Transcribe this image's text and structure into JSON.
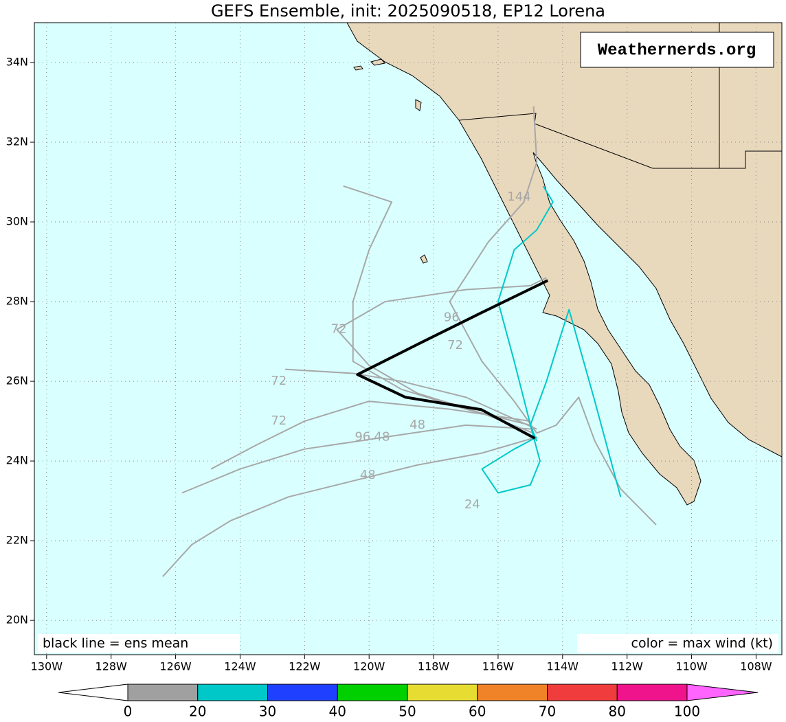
{
  "chart_data": {
    "type": "track_map",
    "title": "GEFS Ensemble, init: 2025090518, EP12 Lorena",
    "watermark": "Weathernerds.org",
    "legend_note": "black line = ens mean",
    "color_note": "color = max wind (kt)",
    "xlim": [
      -130.38,
      -107.2
    ],
    "ylim": [
      19.14,
      35.0
    ],
    "grid": true,
    "xticks": [
      {
        "value": -130,
        "label": "130W"
      },
      {
        "value": -128,
        "label": "128W"
      },
      {
        "value": -126,
        "label": "126W"
      },
      {
        "value": -124,
        "label": "124W"
      },
      {
        "value": -122,
        "label": "122W"
      },
      {
        "value": -120,
        "label": "120W"
      },
      {
        "value": -118,
        "label": "118W"
      },
      {
        "value": -116,
        "label": "116W"
      },
      {
        "value": -114,
        "label": "114W"
      },
      {
        "value": -112,
        "label": "112W"
      },
      {
        "value": -110,
        "label": "110W"
      },
      {
        "value": -108,
        "label": "108W"
      }
    ],
    "yticks": [
      {
        "value": 20,
        "label": "20N"
      },
      {
        "value": 22,
        "label": "22N"
      },
      {
        "value": 24,
        "label": "24N"
      },
      {
        "value": 26,
        "label": "26N"
      },
      {
        "value": 28,
        "label": "28N"
      },
      {
        "value": 30,
        "label": "30N"
      },
      {
        "value": 32,
        "label": "32N"
      },
      {
        "value": 34,
        "label": "34N"
      }
    ],
    "series": [
      {
        "color": "#a8a8a8",
        "x": [
          -114.8,
          -116.5,
          -118.5,
          -120.5,
          -122.5,
          -124.3,
          -125.5,
          -126.4
        ],
        "y": [
          24.6,
          24.2,
          23.9,
          23.5,
          23.1,
          22.5,
          21.9,
          21.1
        ]
      },
      {
        "color": "#a8a8a8",
        "x": [
          -114.9,
          -117,
          -119.5,
          -122,
          -124,
          -125.8
        ],
        "y": [
          24.8,
          24.9,
          24.6,
          24.3,
          23.8,
          23.2
        ]
      },
      {
        "color": "#a8a8a8",
        "x": [
          -114.8,
          -115.5,
          -116.5,
          -117.5,
          -116.3,
          -115.2,
          -114.8,
          -114.9
        ],
        "y": [
          24.7,
          25.5,
          26.5,
          28,
          29.5,
          30.5,
          31.5,
          32.9
        ]
      },
      {
        "color": "#a8a8a8",
        "x": [
          -115,
          -117,
          -119,
          -120.5,
          -120.5,
          -120,
          -119.3,
          -120.8
        ],
        "y": [
          24.9,
          25.3,
          25.8,
          26.5,
          28,
          29.3,
          30.5,
          30.9
        ]
      },
      {
        "color": "#a8a8a8",
        "x": [
          -114.8,
          -114.2,
          -113.5,
          -113,
          -112.2,
          -111.1
        ],
        "y": [
          24.7,
          24.9,
          25.6,
          24.5,
          23.3,
          22.4
        ]
      },
      {
        "color": "#a8a8a8",
        "x": [
          -115,
          -117.5,
          -120,
          -122,
          -123.5,
          -124.9
        ],
        "y": [
          25,
          25.3,
          25.5,
          25.0,
          24.4,
          23.8
        ]
      },
      {
        "color": "#a8a8a8",
        "x": [
          -114.8,
          -117,
          -119,
          -120.5,
          -122.6
        ],
        "y": [
          24.8,
          25.6,
          26.0,
          26.2,
          26.3
        ]
      },
      {
        "color": "#a8a8a8",
        "x": [
          -114.9,
          -116.5,
          -118.5,
          -120,
          -121,
          -119.5,
          -117,
          -115,
          -114.5
        ],
        "y": [
          24.7,
          25.2,
          25.7,
          26.4,
          27.3,
          28.0,
          28.3,
          28.4,
          28.6
        ]
      },
      {
        "color": "#00c8c8",
        "x": [
          -114.8,
          -115,
          -114.5,
          -114,
          -113.8,
          -113,
          -112.2
        ],
        "y": [
          24.5,
          24.9,
          26,
          27.3,
          27.8,
          25.5,
          23.1
        ]
      },
      {
        "color": "#00c8c8",
        "x": [
          -114.8,
          -115.5,
          -116.5,
          -116,
          -115,
          -114.7,
          -114.9
        ],
        "y": [
          24.6,
          24.3,
          23.8,
          23.2,
          23.4,
          24,
          24.6
        ]
      },
      {
        "color": "#00c8c8",
        "x": [
          -114.9,
          -115.5,
          -116,
          -115.5,
          -114.8,
          -114.3,
          -114.6
        ],
        "y": [
          24.6,
          26.5,
          28.0,
          29.3,
          29.8,
          30.5,
          30.9
        ]
      }
    ],
    "mean_track": {
      "color": "#000000",
      "x": [
        -114.86,
        -116.52,
        -118.87,
        -120.36,
        -118.44,
        -116.52,
        -114.46
      ],
      "y": [
        24.57,
        25.29,
        25.6,
        26.17,
        26.95,
        27.72,
        28.53
      ]
    },
    "hour_labels": [
      {
        "text": "144",
        "x": -115.35,
        "y": 30.62
      },
      {
        "text": "96",
        "x": -117.44,
        "y": 27.6
      },
      {
        "text": "72",
        "x": -117.33,
        "y": 26.9
      },
      {
        "text": "72",
        "x": -120.94,
        "y": 27.3
      },
      {
        "text": "72",
        "x": -122.8,
        "y": 26.0
      },
      {
        "text": "72",
        "x": -122.8,
        "y": 25.0
      },
      {
        "text": "48",
        "x": -120.04,
        "y": 23.64
      },
      {
        "text": "24",
        "x": -116.8,
        "y": 22.9
      },
      {
        "text": "96",
        "x": -120.2,
        "y": 24.6
      },
      {
        "text": "48",
        "x": -119.6,
        "y": 24.6
      },
      {
        "text": "48",
        "x": -118.5,
        "y": 24.9
      }
    ],
    "colorbar": {
      "ticks": [
        0,
        20,
        30,
        40,
        50,
        60,
        70,
        80,
        100
      ],
      "colors": [
        "#a0a0a0",
        "#00c8c8",
        "#2040ff",
        "#00d000",
        "#e6dc32",
        "#f08228",
        "#f03c3c",
        "#f0148c"
      ],
      "under_color": "#ffffff",
      "over_color": "#ff64ff"
    }
  }
}
